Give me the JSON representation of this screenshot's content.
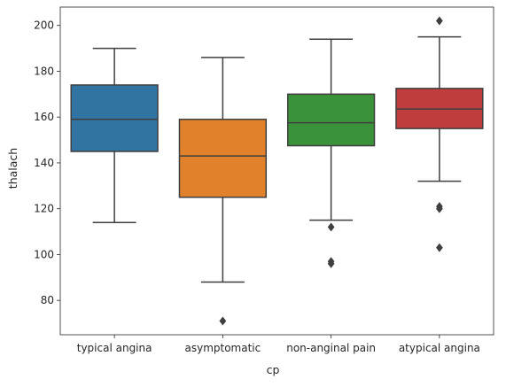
{
  "chart_data": {
    "type": "box",
    "title": "",
    "xlabel": "cp",
    "ylabel": "thalach",
    "ylim": [
      65,
      208
    ],
    "yticks": [
      80,
      100,
      120,
      140,
      160,
      180,
      200
    ],
    "grid": false,
    "categories": [
      "typical angina",
      "asymptomatic",
      "non-anginal pain",
      "atypical angina"
    ],
    "boxes": [
      {
        "category": "typical angina",
        "color": "#3274a1",
        "whisker_low": 114,
        "q1": 145,
        "median": 159,
        "q3": 174,
        "whisker_high": 190,
        "outliers": []
      },
      {
        "category": "asymptomatic",
        "color": "#e1812c",
        "whisker_low": 88,
        "q1": 125,
        "median": 143,
        "q3": 159,
        "whisker_high": 186,
        "outliers": [
          71
        ]
      },
      {
        "category": "non-anginal pain",
        "color": "#3a923a",
        "whisker_low": 115,
        "q1": 147.5,
        "median": 157.5,
        "q3": 170,
        "whisker_high": 194,
        "outliers": [
          112,
          97,
          96
        ]
      },
      {
        "category": "atypical angina",
        "color": "#c03d3e",
        "whisker_low": 132,
        "q1": 155,
        "median": 163.5,
        "q3": 172.5,
        "whisker_high": 195,
        "outliers": [
          202,
          121,
          120,
          103
        ]
      }
    ]
  }
}
